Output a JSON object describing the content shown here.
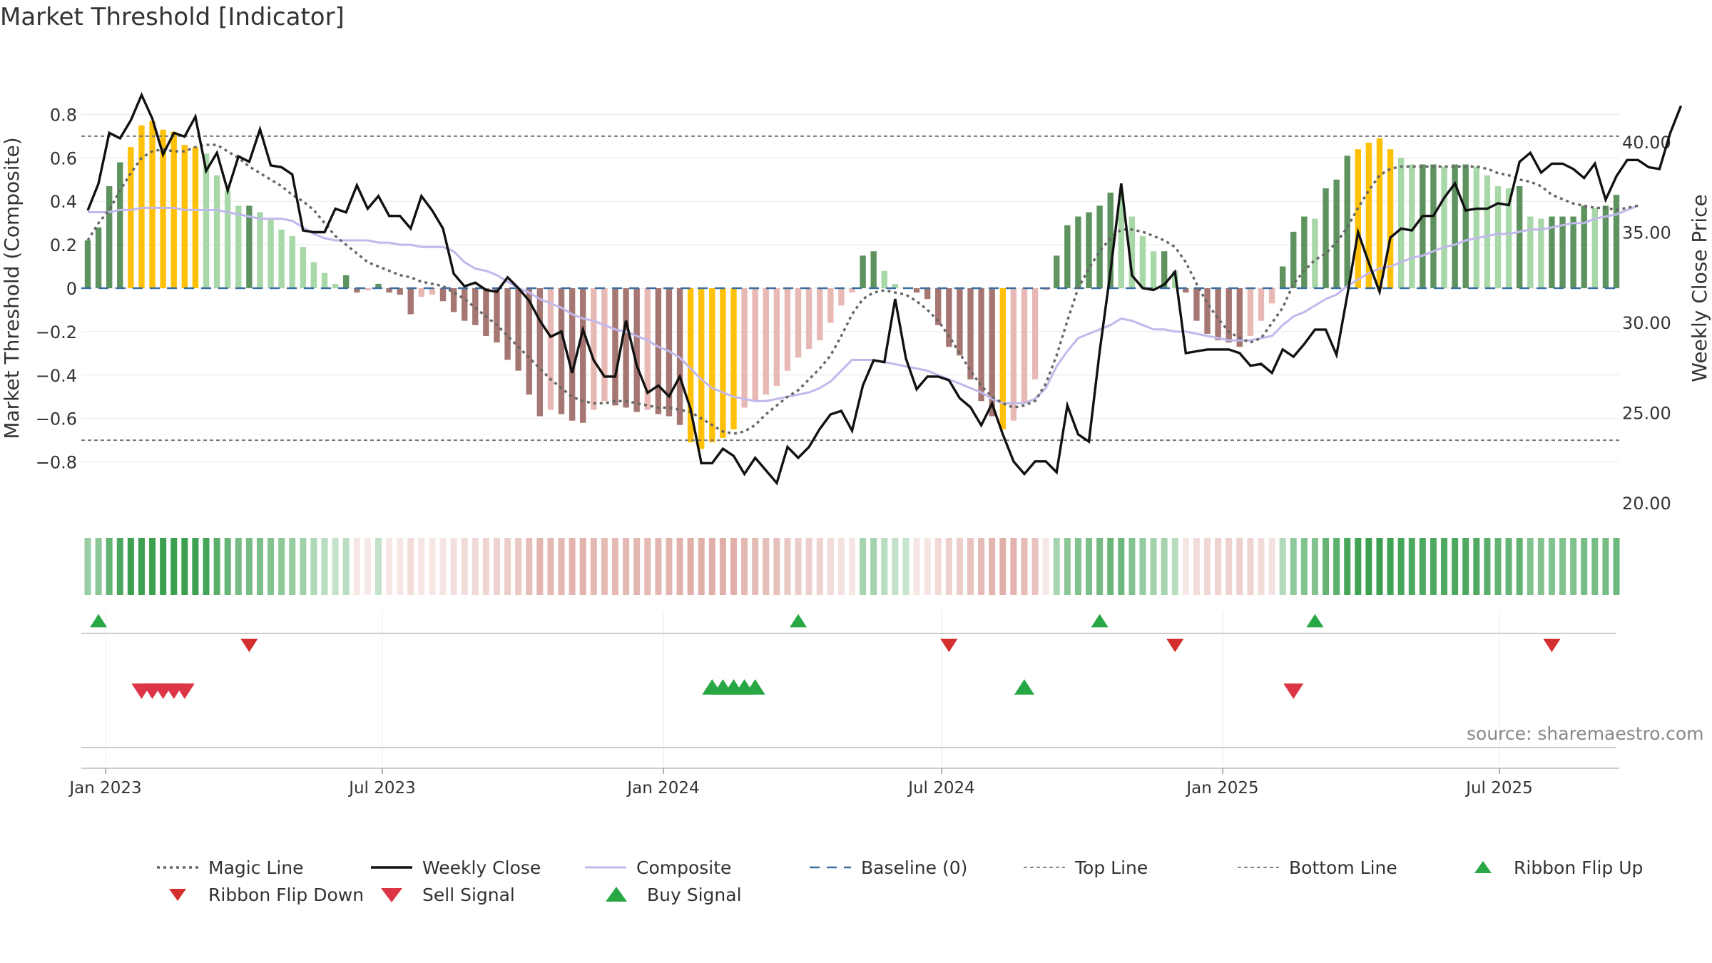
{
  "title": "Market Threshold [Indicator]",
  "source": "source: sharemaestro.com",
  "colors": {
    "dark_green": "#5e9360",
    "light_green": "#a8d8a8",
    "dark_red": "#a67672",
    "light_red": "#e8b9b4",
    "yellow": "#ffc107",
    "composite": "#c1b8ec",
    "close": "#111111",
    "magic": "#666666",
    "baseline": "#3b6fa0",
    "buy": "#28a745",
    "sell": "#dc3545"
  },
  "legend": [
    {
      "label": "Magic Line",
      "icon": "dotted-line"
    },
    {
      "label": "Weekly Close",
      "icon": "solid-line"
    },
    {
      "label": "Composite",
      "icon": "solid-line"
    },
    {
      "label": "Baseline (0)",
      "icon": "dashed-line"
    },
    {
      "label": "Top Line",
      "icon": "dotted-line"
    },
    {
      "label": "Bottom Line",
      "icon": "dotted-line"
    },
    {
      "label": "Ribbon Flip Up",
      "icon": "triangle-up"
    },
    {
      "label": "Ribbon Flip Down",
      "icon": "triangle-down"
    },
    {
      "label": "Sell Signal",
      "icon": "triangle-down"
    },
    {
      "label": "Buy Signal",
      "icon": "triangle-up"
    }
  ],
  "chart_data": {
    "type": "bar",
    "title": "Market Threshold [Indicator]",
    "ylabel": "Market Threshold (Composite)",
    "y2label": "Weekly Close Price",
    "ylim": [
      -0.8,
      0.8
    ],
    "yticks": [
      "0.8",
      "0.6",
      "0.4",
      "0.2",
      "0",
      "−0.2",
      "−0.4",
      "−0.6",
      "−0.8"
    ],
    "y2lim": [
      20,
      42
    ],
    "y2ticks": [
      "40.00",
      "35.00",
      "30.00",
      "25.00",
      "20.00"
    ],
    "xticks": [
      "Jan 2023",
      "Jul 2023",
      "Jan 2024",
      "Jul 2024",
      "Jan 2025",
      "Jul 2025"
    ],
    "top_line": 0.7,
    "bottom_line": -0.7,
    "baseline": 0,
    "composite_bars": [
      0.22,
      0.28,
      0.47,
      0.58,
      0.65,
      0.75,
      0.77,
      0.73,
      0.72,
      0.66,
      0.65,
      0.62,
      0.52,
      0.45,
      0.38,
      0.38,
      0.35,
      0.32,
      0.27,
      0.24,
      0.19,
      0.12,
      0.07,
      0.02,
      0.06,
      -0.02,
      -0.01,
      0.02,
      -0.02,
      -0.03,
      -0.12,
      -0.04,
      -0.03,
      -0.06,
      -0.11,
      -0.15,
      -0.17,
      -0.22,
      -0.25,
      -0.33,
      -0.38,
      -0.49,
      -0.59,
      -0.56,
      -0.58,
      -0.61,
      -0.62,
      -0.56,
      -0.52,
      -0.54,
      -0.55,
      -0.57,
      -0.56,
      -0.58,
      -0.59,
      -0.63,
      -0.71,
      -0.74,
      -0.71,
      -0.69,
      -0.65,
      -0.55,
      -0.52,
      -0.49,
      -0.45,
      -0.38,
      -0.32,
      -0.28,
      -0.24,
      -0.16,
      -0.08,
      -0.02,
      0.15,
      0.17,
      0.08,
      0.02,
      0.005,
      -0.02,
      -0.05,
      -0.17,
      -0.27,
      -0.31,
      -0.42,
      -0.52,
      -0.59,
      -0.65,
      -0.61,
      -0.53,
      -0.42,
      -0.01,
      0.15,
      0.29,
      0.33,
      0.35,
      0.38,
      0.44,
      0.43,
      0.33,
      0.24,
      0.17,
      0.17,
      0.08,
      -0.02,
      -0.15,
      -0.21,
      -0.24,
      -0.25,
      -0.27,
      -0.22,
      -0.15,
      -0.07,
      0.1,
      0.26,
      0.33,
      0.32,
      0.46,
      0.5,
      0.61,
      0.64,
      0.67,
      0.69,
      0.64,
      0.6,
      0.57,
      0.57,
      0.57,
      0.56,
      0.57,
      0.57,
      0.56,
      0.52,
      0.47,
      0.46,
      0.47,
      0.33,
      0.32,
      0.33,
      0.33,
      0.33,
      0.38,
      0.37,
      0.38,
      0.43
    ],
    "weekly_close": [
      36.2,
      37.7,
      40.5,
      40.2,
      41.2,
      42.6,
      41.3,
      39.3,
      40.5,
      40.3,
      41.4,
      38.4,
      39.4,
      37.3,
      39.2,
      38.9,
      40.7,
      38.7,
      38.6,
      38.2,
      35.1,
      35.0,
      35.0,
      36.3,
      36.1,
      37.6,
      36.3,
      37.0,
      35.9,
      35.9,
      35.2,
      37.0,
      36.2,
      35.2,
      32.7,
      32.0,
      32.2,
      31.8,
      31.7,
      32.5,
      31.9,
      31.2,
      30.1,
      29.2,
      29.5,
      27.2,
      29.6,
      27.9,
      27.0,
      27.0,
      30.1,
      27.6,
      26.1,
      26.5,
      25.9,
      27.0,
      25.2,
      22.2,
      22.2,
      23.0,
      22.6,
      21.6,
      22.5,
      21.8,
      21.1,
      23.1,
      22.5,
      23.1,
      24.1,
      24.9,
      25.1,
      24.0,
      26.5,
      27.9,
      27.8,
      31.3,
      28.0,
      26.3,
      27.0,
      27.0,
      26.8,
      25.8,
      25.3,
      24.3,
      25.5,
      23.8,
      22.3,
      21.6,
      22.3,
      22.3,
      21.7,
      25.4,
      23.8,
      23.4,
      28.4,
      32.8,
      37.7,
      32.6,
      31.9,
      31.8,
      32.1,
      32.8,
      28.3,
      28.4,
      28.5,
      28.5,
      28.5,
      28.3,
      27.6,
      27.7,
      27.2,
      28.5,
      28.1,
      28.8,
      29.6,
      29.6,
      28.2,
      31.5,
      35.0,
      33.3,
      31.7,
      34.7,
      35.2,
      35.1,
      35.9,
      35.9,
      36.9,
      37.7,
      36.2,
      36.3,
      36.3,
      36.6,
      36.5,
      38.9,
      39.4,
      38.3,
      38.8,
      38.8,
      38.5,
      38.0,
      38.8,
      36.8,
      38.1,
      39.0,
      39.0,
      38.6,
      38.5,
      40.5,
      42.0
    ],
    "magic_line": [
      0.22,
      0.3,
      0.36,
      0.45,
      0.53,
      0.6,
      0.63,
      0.64,
      0.63,
      0.63,
      0.65,
      0.66,
      0.66,
      0.63,
      0.6,
      0.56,
      0.53,
      0.5,
      0.47,
      0.43,
      0.4,
      0.36,
      0.3,
      0.24,
      0.2,
      0.16,
      0.12,
      0.1,
      0.08,
      0.06,
      0.05,
      0.03,
      0.02,
      0.01,
      -0.02,
      -0.05,
      -0.09,
      -0.13,
      -0.17,
      -0.22,
      -0.27,
      -0.32,
      -0.37,
      -0.42,
      -0.46,
      -0.5,
      -0.52,
      -0.53,
      -0.53,
      -0.52,
      -0.52,
      -0.53,
      -0.54,
      -0.55,
      -0.55,
      -0.56,
      -0.57,
      -0.6,
      -0.63,
      -0.66,
      -0.67,
      -0.66,
      -0.63,
      -0.58,
      -0.54,
      -0.5,
      -0.47,
      -0.42,
      -0.37,
      -0.31,
      -0.22,
      -0.12,
      -0.05,
      -0.02,
      -0.01,
      -0.02,
      -0.03,
      -0.06,
      -0.1,
      -0.15,
      -0.22,
      -0.3,
      -0.38,
      -0.45,
      -0.5,
      -0.53,
      -0.55,
      -0.54,
      -0.52,
      -0.44,
      -0.31,
      -0.15,
      0.0,
      0.09,
      0.17,
      0.23,
      0.27,
      0.27,
      0.26,
      0.24,
      0.22,
      0.19,
      0.12,
      0.02,
      -0.07,
      -0.14,
      -0.2,
      -0.23,
      -0.25,
      -0.23,
      -0.16,
      -0.09,
      0.02,
      0.08,
      0.13,
      0.16,
      0.21,
      0.28,
      0.37,
      0.45,
      0.52,
      0.55,
      0.56,
      0.56,
      0.56,
      0.56,
      0.56,
      0.56,
      0.56,
      0.56,
      0.55,
      0.53,
      0.52,
      0.5,
      0.49,
      0.47,
      0.43,
      0.41,
      0.39,
      0.38,
      0.37,
      0.37,
      0.36,
      0.37,
      0.38
    ],
    "composite_line": [
      0.35,
      0.35,
      0.35,
      0.36,
      0.36,
      0.37,
      0.37,
      0.37,
      0.37,
      0.36,
      0.36,
      0.36,
      0.36,
      0.35,
      0.34,
      0.33,
      0.32,
      0.32,
      0.32,
      0.31,
      0.28,
      0.25,
      0.23,
      0.22,
      0.22,
      0.22,
      0.22,
      0.21,
      0.21,
      0.2,
      0.2,
      0.19,
      0.19,
      0.19,
      0.17,
      0.12,
      0.09,
      0.08,
      0.06,
      0.03,
      0.0,
      -0.02,
      -0.05,
      -0.07,
      -0.09,
      -0.12,
      -0.14,
      -0.15,
      -0.17,
      -0.19,
      -0.2,
      -0.22,
      -0.24,
      -0.27,
      -0.29,
      -0.32,
      -0.37,
      -0.42,
      -0.46,
      -0.48,
      -0.5,
      -0.51,
      -0.52,
      -0.52,
      -0.51,
      -0.5,
      -0.49,
      -0.48,
      -0.46,
      -0.43,
      -0.38,
      -0.33,
      -0.33,
      -0.33,
      -0.34,
      -0.35,
      -0.36,
      -0.37,
      -0.38,
      -0.4,
      -0.42,
      -0.44,
      -0.46,
      -0.48,
      -0.51,
      -0.53,
      -0.53,
      -0.53,
      -0.51,
      -0.46,
      -0.36,
      -0.29,
      -0.23,
      -0.21,
      -0.19,
      -0.17,
      -0.14,
      -0.15,
      -0.17,
      -0.19,
      -0.19,
      -0.2,
      -0.2,
      -0.21,
      -0.22,
      -0.23,
      -0.24,
      -0.24,
      -0.24,
      -0.23,
      -0.22,
      -0.17,
      -0.13,
      -0.11,
      -0.08,
      -0.05,
      -0.03,
      0.01,
      0.04,
      0.07,
      0.09,
      0.1,
      0.12,
      0.14,
      0.15,
      0.17,
      0.19,
      0.2,
      0.22,
      0.23,
      0.24,
      0.25,
      0.25,
      0.26,
      0.27,
      0.27,
      0.28,
      0.29,
      0.3,
      0.3,
      0.32,
      0.33,
      0.34,
      0.36,
      0.38
    ],
    "ribbon_flip_up_idx": [
      1,
      66,
      94,
      114
    ],
    "ribbon_flip_down_idx": [
      15,
      80,
      101,
      136
    ],
    "sell_signal_idx": [
      5,
      6,
      7,
      8,
      9,
      112
    ],
    "buy_signal_idx": [
      58,
      59,
      60,
      61,
      62,
      87
    ]
  }
}
